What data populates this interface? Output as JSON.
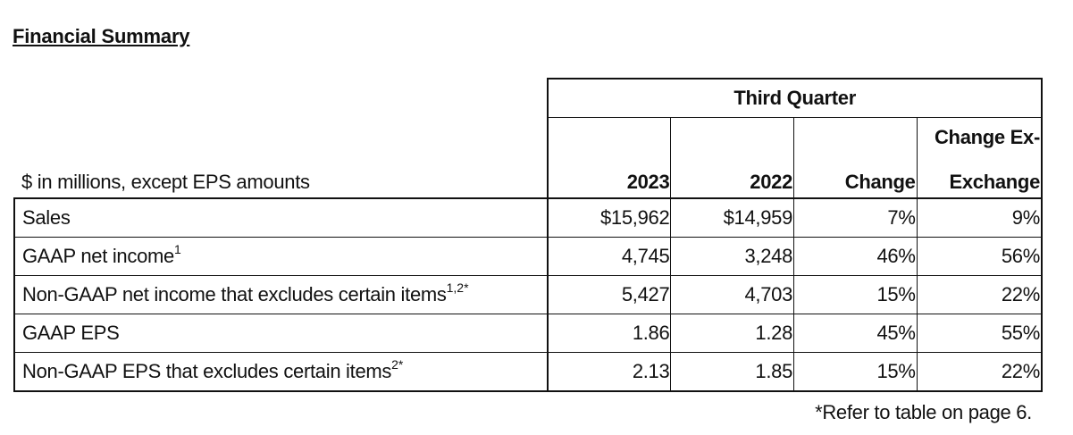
{
  "title": "Financial Summary",
  "table": {
    "period_label": "Third Quarter",
    "units_label": "$ in millions, except EPS amounts",
    "columns": {
      "y2023": "2023",
      "y2022": "2022",
      "change": "Change",
      "change_ex_line1": "Change Ex-",
      "change_ex_line2": "Exchange"
    },
    "rows": [
      {
        "label": "Sales",
        "sup": "",
        "v2023": "$15,962",
        "v2022": "$14,959",
        "change": "7%",
        "change_ex": "9%"
      },
      {
        "label": "GAAP net income",
        "sup": "1",
        "v2023": "4,745",
        "v2022": "3,248",
        "change": "46%",
        "change_ex": "56%"
      },
      {
        "label": "Non-GAAP net income that excludes certain items",
        "sup": "1,2*",
        "v2023": "5,427",
        "v2022": "4,703",
        "change": "15%",
        "change_ex": "22%"
      },
      {
        "label": "GAAP EPS",
        "sup": "",
        "v2023": "1.86",
        "v2022": "1.28",
        "change": "45%",
        "change_ex": "55%"
      },
      {
        "label": "Non-GAAP EPS that excludes certain items",
        "sup": "2*",
        "v2023": "2.13",
        "v2022": "1.85",
        "change": "15%",
        "change_ex": "22%"
      }
    ]
  },
  "footnote": "*Refer to table on page 6."
}
